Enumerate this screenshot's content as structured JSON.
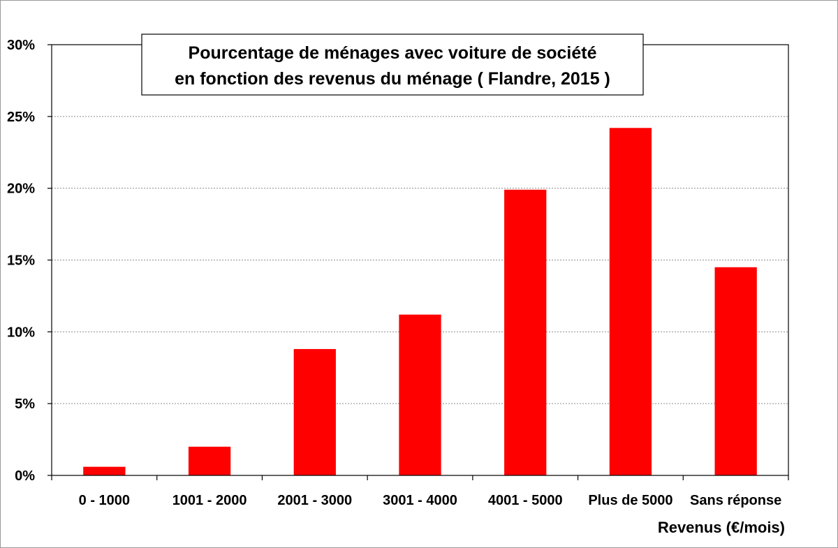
{
  "chart_data": {
    "type": "bar",
    "title_lines": [
      "Pourcentage de ménages avec voiture de société",
      "en fonction des revenus du ménage ( Flandre, 2015 )"
    ],
    "xlabel": "Revenus  (€/mois)",
    "ylabel": "",
    "categories": [
      "0 - 1000",
      "1001 - 2000",
      "2001 - 3000",
      "3001 - 4000",
      "4001 - 5000",
      "Plus de 5000",
      "Sans réponse"
    ],
    "values": [
      0.6,
      2.0,
      8.8,
      11.2,
      19.9,
      24.2,
      14.5
    ],
    "ylim": [
      0,
      30
    ],
    "yticks": [
      0,
      5,
      10,
      15,
      20,
      25,
      30
    ],
    "ytick_labels": [
      "0%",
      "5%",
      "10%",
      "15%",
      "20%",
      "25%",
      "30%"
    ],
    "grid": true,
    "legend": "none",
    "bar_color": "#ff0000"
  }
}
